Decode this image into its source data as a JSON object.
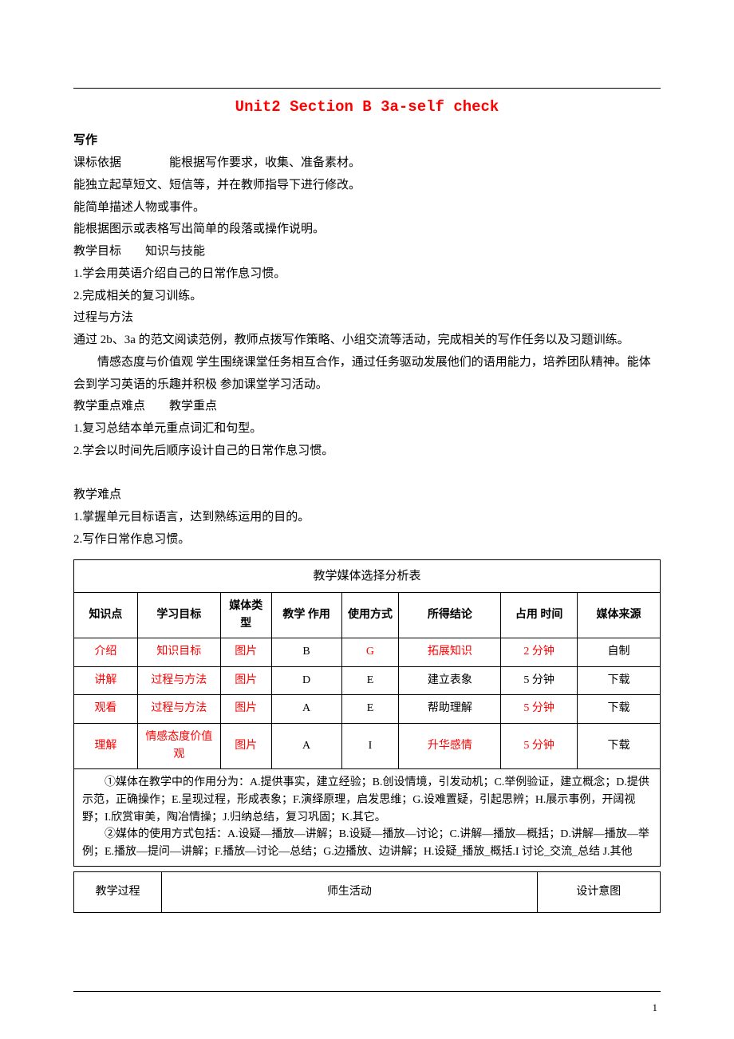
{
  "doc_title": "Unit2 Section B 3a-self check",
  "title_color": "#ff0000",
  "section1_heading": "写作",
  "biaozhun_label": "课标依据",
  "biaozhun_line1": "能根据写作要求，收集、准备素材。",
  "biaozhun_line2": "能独立起草短文、短信等，并在教师指导下进行修改。",
  "biaozhun_line3": "能简单描述人物或事件。",
  "biaozhun_line4": "能根据图示或表格写出简单的段落或操作说明。",
  "mubiao_label": "教学目标",
  "zhishi_label": "知识与技能",
  "zhishi_1": "1.学会用英语介绍自己的日常作息习惯。",
  "zhishi_2": "2.完成相关的复习训练。",
  "guocheng_label": "过程与方法",
  "guocheng_text": "通过 2b、3a 的范文阅读范例，教师点拨写作策略、小组交流等活动，完成相关的写作任务以及习题训练。",
  "qinggan_label": "情感态度与价值观",
  "qinggan_text": "学生围绕课堂任务相互合作，通过任务驱动发展他们的语用能力，培养团队精神。能体会到学习英语的乐趣并积极 参加课堂学习活动。",
  "zdnd_label": "教学重点难点",
  "zd_label": "教学重点",
  "zd_1": " 1.复习总结本单元重点词汇和句型。",
  "zd_2": "2.学会以时间先后顺序设计自己的日常作息习惯。",
  "nd_label": "教学难点",
  "nd_1": "1.掌握单元目标语言，达到熟练运用的目的。",
  "nd_2": "2.写作日常作息习惯。",
  "media_table": {
    "title": "教学媒体选择分析表",
    "headers": [
      "知识点",
      "学习目标",
      "媒体类型",
      "教学 作用",
      "使用方式",
      "所得结论",
      "占用 时间",
      "媒体来源"
    ],
    "rows": [
      {
        "c": [
          "介绍",
          "知识目标",
          "图片",
          "B",
          "G",
          "拓展知识",
          "2 分钟",
          "自制"
        ],
        "red": [
          0,
          1,
          2,
          4,
          5,
          6
        ]
      },
      {
        "c": [
          "讲解",
          "过程与方法",
          "图片",
          "D",
          "E",
          "建立表象",
          "5 分钟",
          "下载"
        ],
        "red": [
          0,
          1,
          2
        ]
      },
      {
        "c": [
          "观看",
          "过程与方法",
          "图片",
          "A",
          "E",
          "帮助理解",
          "5 分钟",
          "下载"
        ],
        "red": [
          0,
          1,
          2,
          6
        ]
      },
      {
        "c": [
          "理解",
          "情感态度价值观",
          "图片",
          "A",
          "I",
          "升华感情",
          "5 分钟",
          "下载"
        ],
        "red": [
          0,
          1,
          2,
          5,
          6
        ]
      }
    ],
    "notes1": "①媒体在教学中的作用分为：A.提供事实，建立经验；B.创设情境，引发动机；C.举例验证，建立概念；D.提供示范，正确操作；E.呈现过程，形成表象；F.演绎原理，启发思维；G.设难置疑，引起思辨；H.展示事例，开阔视野；I.欣赏审美，陶冶情操；J.归纳总结，复习巩固；K.其它。",
    "notes2": "②媒体的使用方式包括：A.设疑—播放—讲解；B.设疑—播放—讨论；C.讲解—播放—概括；D.讲解—播放—举例；E.播放—提问—讲解；F.播放—讨论—总结；G.边播放、边讲解；H.设疑_播放_概括.I 讨论_交流_总结 J.其他"
  },
  "process_headers": [
    "教学过程",
    "师生活动",
    "设计意图"
  ],
  "page_number": "1"
}
